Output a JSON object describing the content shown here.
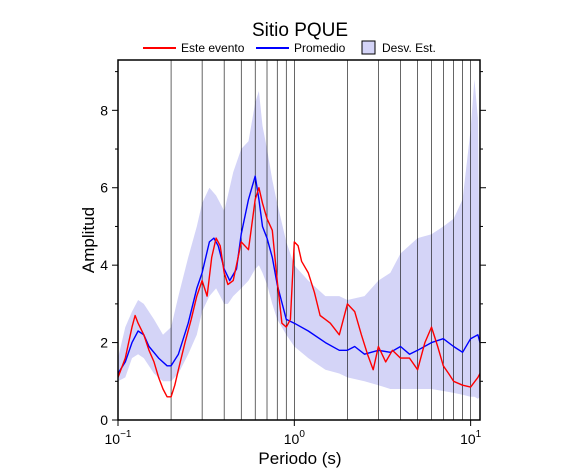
{
  "chart_data": {
    "type": "line",
    "title": "Sitio PQUE",
    "xlabel": "Periodo (s)",
    "ylabel": "Amplitud",
    "xscale": "log",
    "xlim": [
      0.1,
      11.3
    ],
    "ylim": [
      0,
      9.3
    ],
    "grid": "vertical log grid",
    "legend_position": "top",
    "x_ticks": [
      {
        "value": 0.1,
        "base": "10",
        "exp": "−1"
      },
      {
        "value": 1,
        "base": "10",
        "exp": "0"
      },
      {
        "value": 10,
        "base": "10",
        "exp": "1"
      }
    ],
    "y_ticks": [
      0,
      2,
      4,
      6,
      8
    ],
    "legend": [
      {
        "label": "Este evento",
        "kind": "line",
        "color": "#ff0000"
      },
      {
        "label": "Promedio",
        "kind": "line",
        "color": "#0000ff"
      },
      {
        "label": "Desv. Est.",
        "kind": "box",
        "color": "#d4d4f7"
      }
    ],
    "band": {
      "name": "Desv. Est.",
      "color": "#d4d4f7",
      "x": [
        0.1,
        0.11,
        0.12,
        0.13,
        0.14,
        0.16,
        0.18,
        0.2,
        0.22,
        0.25,
        0.28,
        0.3,
        0.33,
        0.36,
        0.38,
        0.4,
        0.42,
        0.45,
        0.5,
        0.55,
        0.6,
        0.63,
        0.66,
        0.7,
        0.75,
        0.8,
        0.9,
        1.0,
        1.2,
        1.5,
        1.8,
        2.0,
        2.5,
        3.0,
        3.5,
        4.0,
        5.0,
        6.0,
        7.0,
        8.0,
        9.0,
        10.0,
        10.5,
        11.0,
        11.3
      ],
      "upper": [
        1.6,
        2.4,
        2.8,
        3.1,
        3.0,
        2.6,
        2.2,
        2.4,
        3.2,
        4.2,
        5.0,
        5.6,
        6.0,
        5.8,
        5.6,
        5.4,
        5.8,
        6.4,
        7.0,
        7.2,
        8.2,
        8.5,
        7.6,
        7.0,
        6.2,
        5.6,
        4.6,
        4.0,
        3.6,
        3.2,
        3.2,
        3.1,
        3.2,
        3.6,
        3.8,
        4.3,
        4.7,
        4.8,
        5.0,
        5.2,
        5.7,
        7.5,
        8.8,
        7.8,
        3.2
      ],
      "lower": [
        1.0,
        1.1,
        1.6,
        1.7,
        1.6,
        1.2,
        1.0,
        1.0,
        1.2,
        1.7,
        2.2,
        2.8,
        3.2,
        3.4,
        3.2,
        3.0,
        3.0,
        3.2,
        3.4,
        3.6,
        3.9,
        4.0,
        3.8,
        3.5,
        3.0,
        2.6,
        2.2,
        1.9,
        1.6,
        1.3,
        1.2,
        1.1,
        1.0,
        0.9,
        0.8,
        0.8,
        0.8,
        0.8,
        0.75,
        0.7,
        0.65,
        0.6,
        0.6,
        0.55,
        0.6
      ]
    },
    "series": [
      {
        "name": "Promedio",
        "color": "#0000ff",
        "x": [
          0.1,
          0.11,
          0.12,
          0.13,
          0.14,
          0.15,
          0.17,
          0.19,
          0.2,
          0.22,
          0.25,
          0.28,
          0.3,
          0.33,
          0.35,
          0.37,
          0.4,
          0.43,
          0.47,
          0.5,
          0.55,
          0.6,
          0.63,
          0.66,
          0.7,
          0.75,
          0.8,
          0.9,
          1.0,
          1.2,
          1.5,
          1.8,
          2.0,
          2.2,
          2.5,
          3.0,
          3.5,
          4.0,
          4.5,
          5.0,
          6.0,
          7.0,
          8.0,
          9.0,
          10.0,
          11.0,
          11.3
        ],
        "values": [
          1.2,
          1.5,
          2.0,
          2.3,
          2.2,
          1.9,
          1.6,
          1.4,
          1.4,
          1.7,
          2.5,
          3.4,
          3.8,
          4.6,
          4.7,
          4.5,
          3.9,
          3.6,
          3.9,
          4.8,
          5.7,
          6.3,
          5.7,
          5.0,
          4.7,
          4.2,
          3.5,
          2.6,
          2.5,
          2.3,
          2.0,
          1.8,
          1.8,
          1.9,
          1.7,
          1.8,
          1.75,
          1.9,
          1.7,
          1.8,
          2.0,
          2.1,
          1.9,
          1.75,
          2.1,
          2.2,
          2.0
        ]
      },
      {
        "name": "Este evento",
        "color": "#ff0000",
        "x": [
          0.1,
          0.11,
          0.12,
          0.125,
          0.13,
          0.14,
          0.15,
          0.16,
          0.17,
          0.18,
          0.19,
          0.2,
          0.21,
          0.22,
          0.24,
          0.26,
          0.28,
          0.3,
          0.32,
          0.34,
          0.36,
          0.38,
          0.4,
          0.42,
          0.45,
          0.48,
          0.5,
          0.55,
          0.6,
          0.63,
          0.66,
          0.7,
          0.75,
          0.8,
          0.85,
          0.9,
          0.95,
          1.0,
          1.05,
          1.1,
          1.2,
          1.3,
          1.4,
          1.5,
          1.6,
          1.8,
          2.0,
          2.2,
          2.4,
          2.6,
          2.8,
          3.0,
          3.3,
          3.6,
          4.0,
          4.5,
          5.0,
          5.5,
          6.0,
          6.5,
          7.0,
          7.5,
          8.0,
          9.0,
          10.0,
          11.0,
          11.3
        ],
        "values": [
          1.1,
          1.6,
          2.4,
          2.7,
          2.5,
          2.2,
          1.8,
          1.5,
          1.1,
          0.8,
          0.6,
          0.6,
          0.9,
          1.3,
          2.0,
          2.6,
          3.2,
          3.6,
          3.2,
          4.2,
          4.7,
          4.5,
          3.8,
          3.5,
          3.6,
          4.2,
          4.6,
          4.4,
          5.7,
          6.0,
          5.6,
          5.2,
          4.9,
          3.6,
          2.5,
          2.4,
          2.6,
          4.6,
          4.5,
          4.1,
          3.8,
          3.3,
          2.7,
          2.6,
          2.5,
          2.2,
          3.0,
          2.8,
          2.2,
          1.7,
          1.3,
          1.9,
          1.5,
          1.8,
          1.6,
          1.6,
          1.3,
          2.0,
          2.4,
          1.9,
          1.4,
          1.2,
          1.0,
          0.9,
          0.85,
          1.1,
          1.2
        ]
      }
    ]
  }
}
